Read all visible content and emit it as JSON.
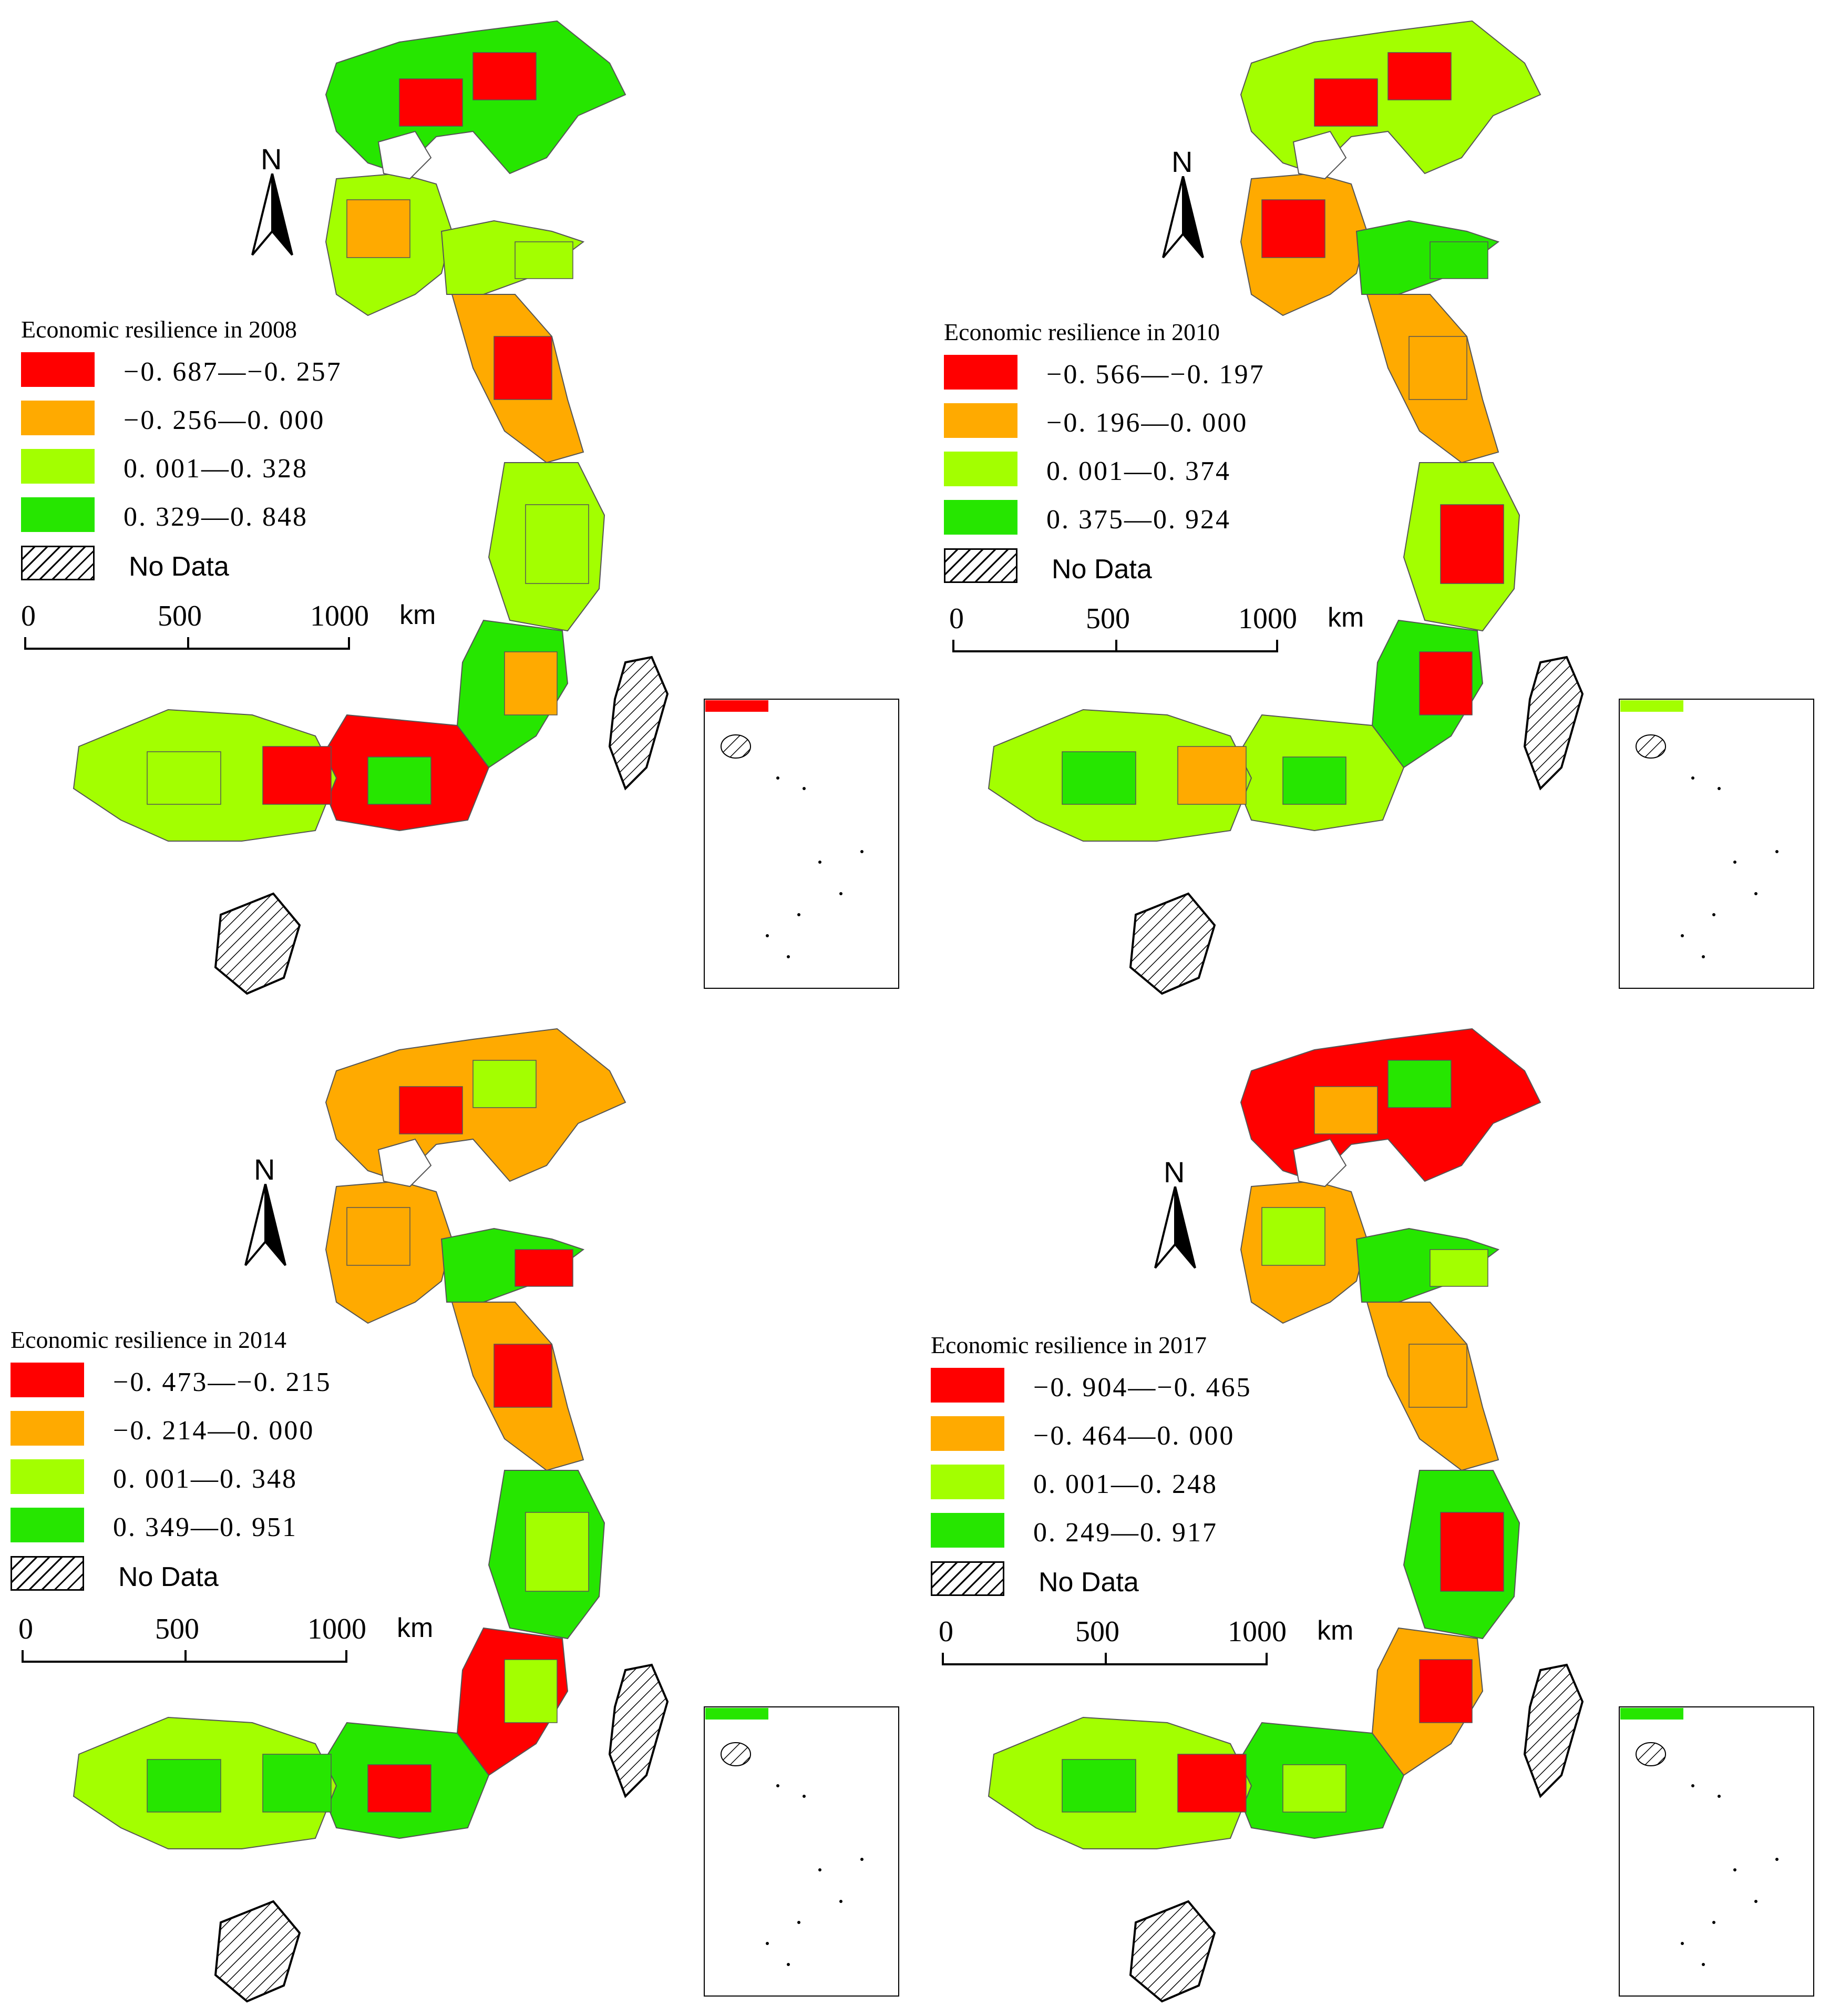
{
  "panels": [
    {
      "title": "Economic resilience in 2008",
      "classes": [
        {
          "range": "−0. 687—−0. 257",
          "color": "#ff0000"
        },
        {
          "range": "−0. 256—0. 000",
          "color": "#ffaa00"
        },
        {
          "range": "0. 001—0. 328",
          "color": "#a3ff00"
        },
        {
          "range": "0. 329—0. 848",
          "color": "#26e600"
        }
      ],
      "dominant": [
        3,
        2,
        2,
        1,
        2,
        3,
        0,
        2
      ]
    },
    {
      "title": "Economic resilience in 2010",
      "classes": [
        {
          "range": "−0. 566—−0. 197",
          "color": "#ff0000"
        },
        {
          "range": "−0. 196—0. 000",
          "color": "#ffaa00"
        },
        {
          "range": "0. 001—0. 374",
          "color": "#a3ff00"
        },
        {
          "range": "0. 375—0. 924",
          "color": "#26e600"
        }
      ],
      "dominant": [
        2,
        1,
        3,
        1,
        2,
        3,
        2,
        2
      ]
    },
    {
      "title": "Economic resilience in 2014",
      "classes": [
        {
          "range": "−0. 473—−0. 215",
          "color": "#ff0000"
        },
        {
          "range": "−0. 214—0. 000",
          "color": "#ffaa00"
        },
        {
          "range": "0. 001—0. 348",
          "color": "#a3ff00"
        },
        {
          "range": "0. 349—0. 951",
          "color": "#26e600"
        }
      ],
      "dominant": [
        1,
        1,
        3,
        1,
        3,
        0,
        3,
        2
      ]
    },
    {
      "title": "Economic resilience in 2017",
      "classes": [
        {
          "range": "−0. 904—−0. 465",
          "color": "#ff0000"
        },
        {
          "range": "−0. 464—0. 000",
          "color": "#ffaa00"
        },
        {
          "range": "0. 001—0. 248",
          "color": "#a3ff00"
        },
        {
          "range": "0. 249—0. 917",
          "color": "#26e600"
        }
      ],
      "dominant": [
        0,
        1,
        3,
        1,
        3,
        1,
        3,
        2
      ]
    }
  ],
  "no_data_label": "No Data",
  "north_label": "N",
  "scale": {
    "ticks": [
      "0",
      "500",
      "1000"
    ],
    "unit": "km"
  },
  "colors": {
    "no_data_hatch": "#000000",
    "boundary": "#555555"
  }
}
